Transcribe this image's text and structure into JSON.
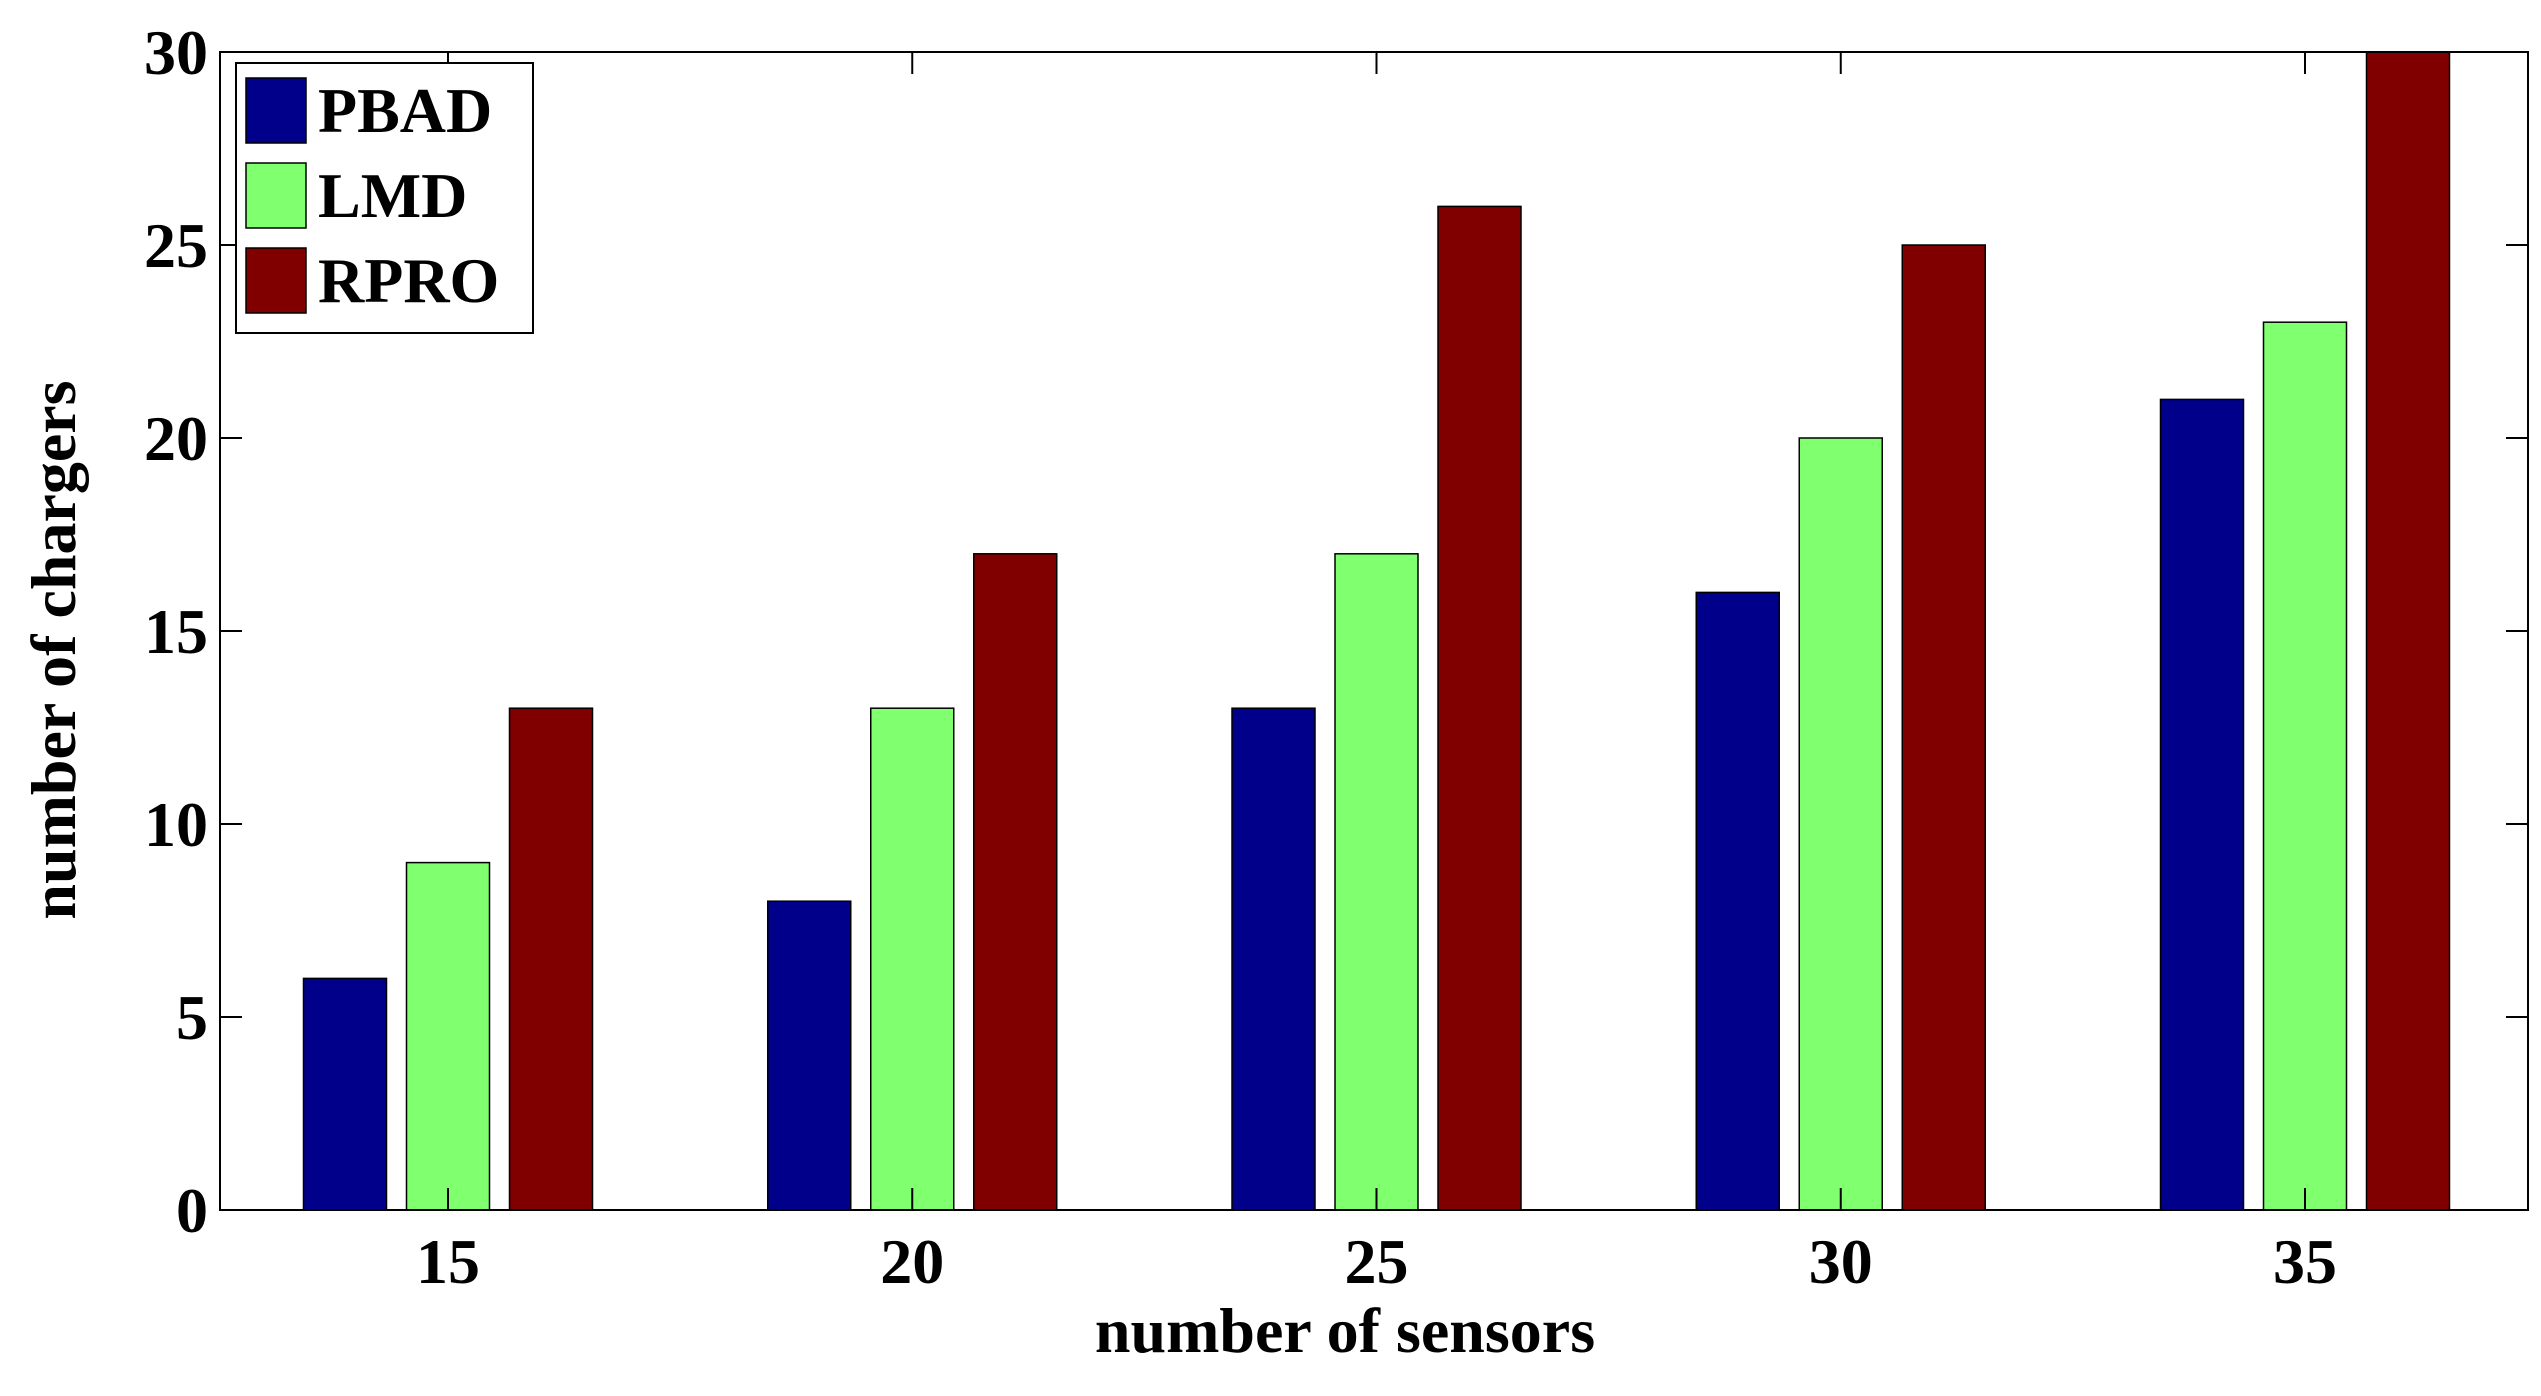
{
  "chart_data": {
    "type": "bar",
    "title": "",
    "xlabel": "number of sensors",
    "ylabel": "number of chargers",
    "categories": [
      "15",
      "20",
      "25",
      "30",
      "35"
    ],
    "ylim": [
      0,
      30
    ],
    "yticks": [
      "0",
      "5",
      "10",
      "15",
      "20",
      "25",
      "30"
    ],
    "grid": false,
    "legend_position": "top-left",
    "series": [
      {
        "name": "PBAD",
        "values": [
          6,
          8,
          13,
          16,
          21
        ],
        "color": "#00008b"
      },
      {
        "name": "LMD",
        "values": [
          9,
          13,
          17,
          20,
          23
        ],
        "color": "#80ff6f"
      },
      {
        "name": "RPRO",
        "values": [
          13,
          17,
          26,
          25,
          30
        ],
        "color": "#800000"
      }
    ]
  }
}
